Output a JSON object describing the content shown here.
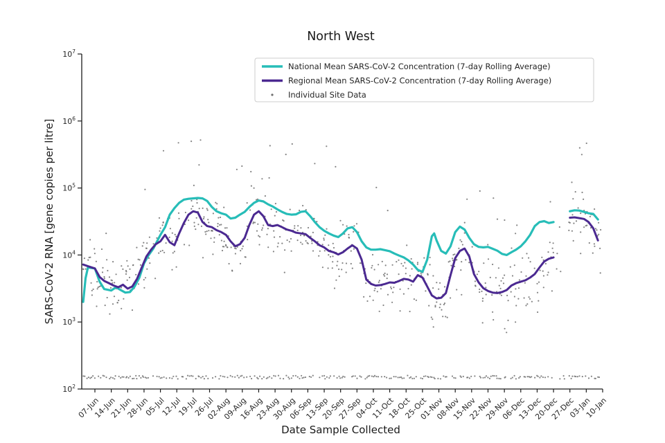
{
  "chart_data": {
    "type": "scatter",
    "title": "North West",
    "xlabel": "Date Sample Collected",
    "ylabel": "SARS-CoV-2 RNA [gene copies per litre]",
    "y_scale": "log",
    "ylim": [
      100,
      10000000
    ],
    "y_tick_exponents": [
      2,
      3,
      4,
      5,
      6,
      7
    ],
    "x_tick_labels": [
      "07-Jun",
      "14-Jun",
      "21-Jun",
      "28-Jun",
      "05-Jul",
      "12-Jul",
      "19-Jul",
      "26-Jul",
      "02-Aug",
      "09-Aug",
      "16-Aug",
      "23-Aug",
      "30-Aug",
      "06-Sep",
      "13-Sep",
      "20-Sep",
      "27-Sep",
      "04-Oct",
      "11-Oct",
      "18-Oct",
      "25-Oct",
      "01-Nov",
      "08-Nov",
      "15-Nov",
      "22-Nov",
      "29-Nov",
      "06-Dec",
      "13-Dec",
      "20-Dec",
      "27-Dec",
      "03-Jan",
      "10-Jan"
    ],
    "legend": {
      "position": "upper center-right",
      "entries": [
        {
          "label": "National Mean SARS-CoV-2 Concentration (7-day Rolling Average)",
          "swatch": "line",
          "color": "#27bdb8"
        },
        {
          "label": "Regional Mean SARS-CoV-2 Concentration (7-day Rolling Average)",
          "swatch": "line",
          "color": "#4b2991"
        },
        {
          "label": "Individual Site Data",
          "swatch": "dot",
          "color": "#6f6f6f"
        }
      ]
    },
    "series": [
      {
        "name": "National Mean SARS-CoV-2 Concentration (7-day Rolling Average)",
        "color": "#27bdb8",
        "width": 3.2,
        "units": "gene copies per litre; day 0 = 07-Jun",
        "segments": [
          [
            [
              -5,
              2000
            ],
            [
              -4,
              4500
            ],
            [
              -3,
              6500
            ],
            [
              0,
              6300
            ],
            [
              2,
              4000
            ],
            [
              4,
              3100
            ],
            [
              7,
              2950
            ],
            [
              9,
              3300
            ],
            [
              11,
              3000
            ],
            [
              13,
              2750
            ],
            [
              15,
              2800
            ],
            [
              17,
              3400
            ],
            [
              19,
              4600
            ],
            [
              21,
              7500
            ],
            [
              23,
              10000
            ],
            [
              25,
              12500
            ],
            [
              28,
              20000
            ],
            [
              30,
              26000
            ],
            [
              32,
              40000
            ],
            [
              34,
              50000
            ],
            [
              36,
              60000
            ],
            [
              38,
              67000
            ],
            [
              40,
              69000
            ],
            [
              42,
              70000
            ],
            [
              44,
              71000
            ],
            [
              46,
              70000
            ],
            [
              48,
              64000
            ],
            [
              50,
              52000
            ],
            [
              52,
              45000
            ],
            [
              54,
              42000
            ],
            [
              56,
              40000
            ],
            [
              58,
              35000
            ],
            [
              60,
              36000
            ],
            [
              62,
              40000
            ],
            [
              64,
              44000
            ],
            [
              66,
              52000
            ],
            [
              68,
              60000
            ],
            [
              70,
              65000
            ],
            [
              72,
              63000
            ],
            [
              74,
              57000
            ],
            [
              76,
              53000
            ],
            [
              78,
              48000
            ],
            [
              80,
              44000
            ],
            [
              82,
              41000
            ],
            [
              84,
              40000
            ],
            [
              86,
              40500
            ],
            [
              88,
              44000
            ],
            [
              90,
              45000
            ],
            [
              92,
              38000
            ],
            [
              94,
              31000
            ],
            [
              96,
              26000
            ],
            [
              98,
              23000
            ],
            [
              100,
              21000
            ],
            [
              102,
              19500
            ],
            [
              104,
              18500
            ],
            [
              106,
              21000
            ],
            [
              108,
              25000
            ],
            [
              110,
              26000
            ],
            [
              112,
              22000
            ],
            [
              114,
              16000
            ],
            [
              116,
              13000
            ],
            [
              118,
              12000
            ],
            [
              120,
              12000
            ],
            [
              122,
              12200
            ],
            [
              124,
              11800
            ],
            [
              126,
              11400
            ],
            [
              128,
              10500
            ],
            [
              130,
              9800
            ],
            [
              132,
              9200
            ],
            [
              134,
              8300
            ],
            [
              136,
              7200
            ],
            [
              138,
              6000
            ],
            [
              140,
              5600
            ],
            [
              142,
              8500
            ],
            [
              144,
              19000
            ],
            [
              145,
              21000
            ],
            [
              146,
              16500
            ],
            [
              148,
              11500
            ],
            [
              150,
              10500
            ],
            [
              152,
              13500
            ],
            [
              154,
              22000
            ],
            [
              156,
              26500
            ],
            [
              158,
              24000
            ],
            [
              160,
              18000
            ],
            [
              162,
              14500
            ],
            [
              164,
              13200
            ],
            [
              166,
              13000
            ],
            [
              168,
              13200
            ],
            [
              170,
              12400
            ],
            [
              172,
              11600
            ],
            [
              174,
              10400
            ],
            [
              176,
              10000
            ],
            [
              178,
              11000
            ],
            [
              180,
              12000
            ],
            [
              182,
              13500
            ],
            [
              184,
              16000
            ],
            [
              186,
              20000
            ],
            [
              188,
              27000
            ],
            [
              190,
              31000
            ],
            [
              192,
              32000
            ],
            [
              194,
              30000
            ],
            [
              196,
              31000
            ]
          ],
          [
            [
              203,
              45000
            ],
            [
              205,
              46500
            ],
            [
              207,
              46000
            ],
            [
              209,
              44000
            ],
            [
              211,
              42000
            ],
            [
              213,
              41000
            ],
            [
              215,
              34000
            ]
          ]
        ]
      },
      {
        "name": "Regional Mean SARS-CoV-2 Concentration (7-day Rolling Average)",
        "color": "#4b2991",
        "width": 3.0,
        "units": "gene copies per litre; day 0 = 07-Jun",
        "segments": [
          [
            [
              -5,
              7200
            ],
            [
              -3,
              6800
            ],
            [
              0,
              6300
            ],
            [
              2,
              4700
            ],
            [
              4,
              4100
            ],
            [
              6,
              3800
            ],
            [
              8,
              3500
            ],
            [
              10,
              3300
            ],
            [
              12,
              3600
            ],
            [
              14,
              3150
            ],
            [
              16,
              3400
            ],
            [
              18,
              4400
            ],
            [
              20,
              6500
            ],
            [
              22,
              9500
            ],
            [
              24,
              12000
            ],
            [
              26,
              14500
            ],
            [
              28,
              16000
            ],
            [
              30,
              20000
            ],
            [
              32,
              15500
            ],
            [
              34,
              14000
            ],
            [
              36,
              21000
            ],
            [
              38,
              30000
            ],
            [
              40,
              40000
            ],
            [
              42,
              45000
            ],
            [
              44,
              43000
            ],
            [
              46,
              31000
            ],
            [
              48,
              27000
            ],
            [
              50,
              26000
            ],
            [
              52,
              23500
            ],
            [
              54,
              22000
            ],
            [
              56,
              20000
            ],
            [
              58,
              16000
            ],
            [
              60,
              13500
            ],
            [
              62,
              14500
            ],
            [
              64,
              18000
            ],
            [
              66,
              28000
            ],
            [
              68,
              40000
            ],
            [
              70,
              45000
            ],
            [
              72,
              38000
            ],
            [
              74,
              28000
            ],
            [
              76,
              27000
            ],
            [
              78,
              28000
            ],
            [
              80,
              26000
            ],
            [
              82,
              24000
            ],
            [
              84,
              23000
            ],
            [
              86,
              21500
            ],
            [
              88,
              21000
            ],
            [
              90,
              20500
            ],
            [
              92,
              18000
            ],
            [
              94,
              16000
            ],
            [
              96,
              14000
            ],
            [
              98,
              13000
            ],
            [
              100,
              11500
            ],
            [
              102,
              11000
            ],
            [
              104,
              10200
            ],
            [
              106,
              11000
            ],
            [
              108,
              12500
            ],
            [
              110,
              14000
            ],
            [
              112,
              12500
            ],
            [
              114,
              8500
            ],
            [
              116,
              4300
            ],
            [
              118,
              3700
            ],
            [
              120,
              3500
            ],
            [
              122,
              3550
            ],
            [
              124,
              3700
            ],
            [
              126,
              3900
            ],
            [
              128,
              3850
            ],
            [
              130,
              4100
            ],
            [
              132,
              4400
            ],
            [
              134,
              4300
            ],
            [
              136,
              4000
            ],
            [
              138,
              5000
            ],
            [
              140,
              4600
            ],
            [
              142,
              3400
            ],
            [
              144,
              2500
            ],
            [
              146,
              2250
            ],
            [
              148,
              2300
            ],
            [
              150,
              2700
            ],
            [
              152,
              5000
            ],
            [
              154,
              9000
            ],
            [
              156,
              11500
            ],
            [
              158,
              12500
            ],
            [
              160,
              9500
            ],
            [
              162,
              5200
            ],
            [
              164,
              3900
            ],
            [
              166,
              3200
            ],
            [
              168,
              2900
            ],
            [
              170,
              2750
            ],
            [
              172,
              2700
            ],
            [
              174,
              2800
            ],
            [
              176,
              3000
            ],
            [
              178,
              3500
            ],
            [
              180,
              3800
            ],
            [
              182,
              4000
            ],
            [
              184,
              4200
            ],
            [
              186,
              4600
            ],
            [
              188,
              5200
            ],
            [
              190,
              6500
            ],
            [
              192,
              8000
            ],
            [
              194,
              8800
            ],
            [
              196,
              9200
            ]
          ],
          [
            [
              203,
              36000
            ],
            [
              205,
              36500
            ],
            [
              207,
              35500
            ],
            [
              209,
              34500
            ],
            [
              211,
              31000
            ],
            [
              213,
              25000
            ],
            [
              215,
              16500
            ]
          ]
        ]
      }
    ],
    "scatter": {
      "name": "Individual Site Data",
      "color": "#6f6f6f",
      "marker_radius": 1.1,
      "opacity": 0.85,
      "procedural": true,
      "seed": 20210607,
      "day_range": [
        -5,
        216
      ],
      "log10_noise_sd": 0.48,
      "outlier_fraction": 0.05,
      "censor_floor_value": 150,
      "value_max": 550000,
      "gap_days": [
        196.5,
        202.5
      ],
      "note": "Hundreds of unlabeled per-site points scattered around the regional mean between ~150 and ~5e5, with a dense censored band at ~1.5e2 across the full date range"
    }
  }
}
